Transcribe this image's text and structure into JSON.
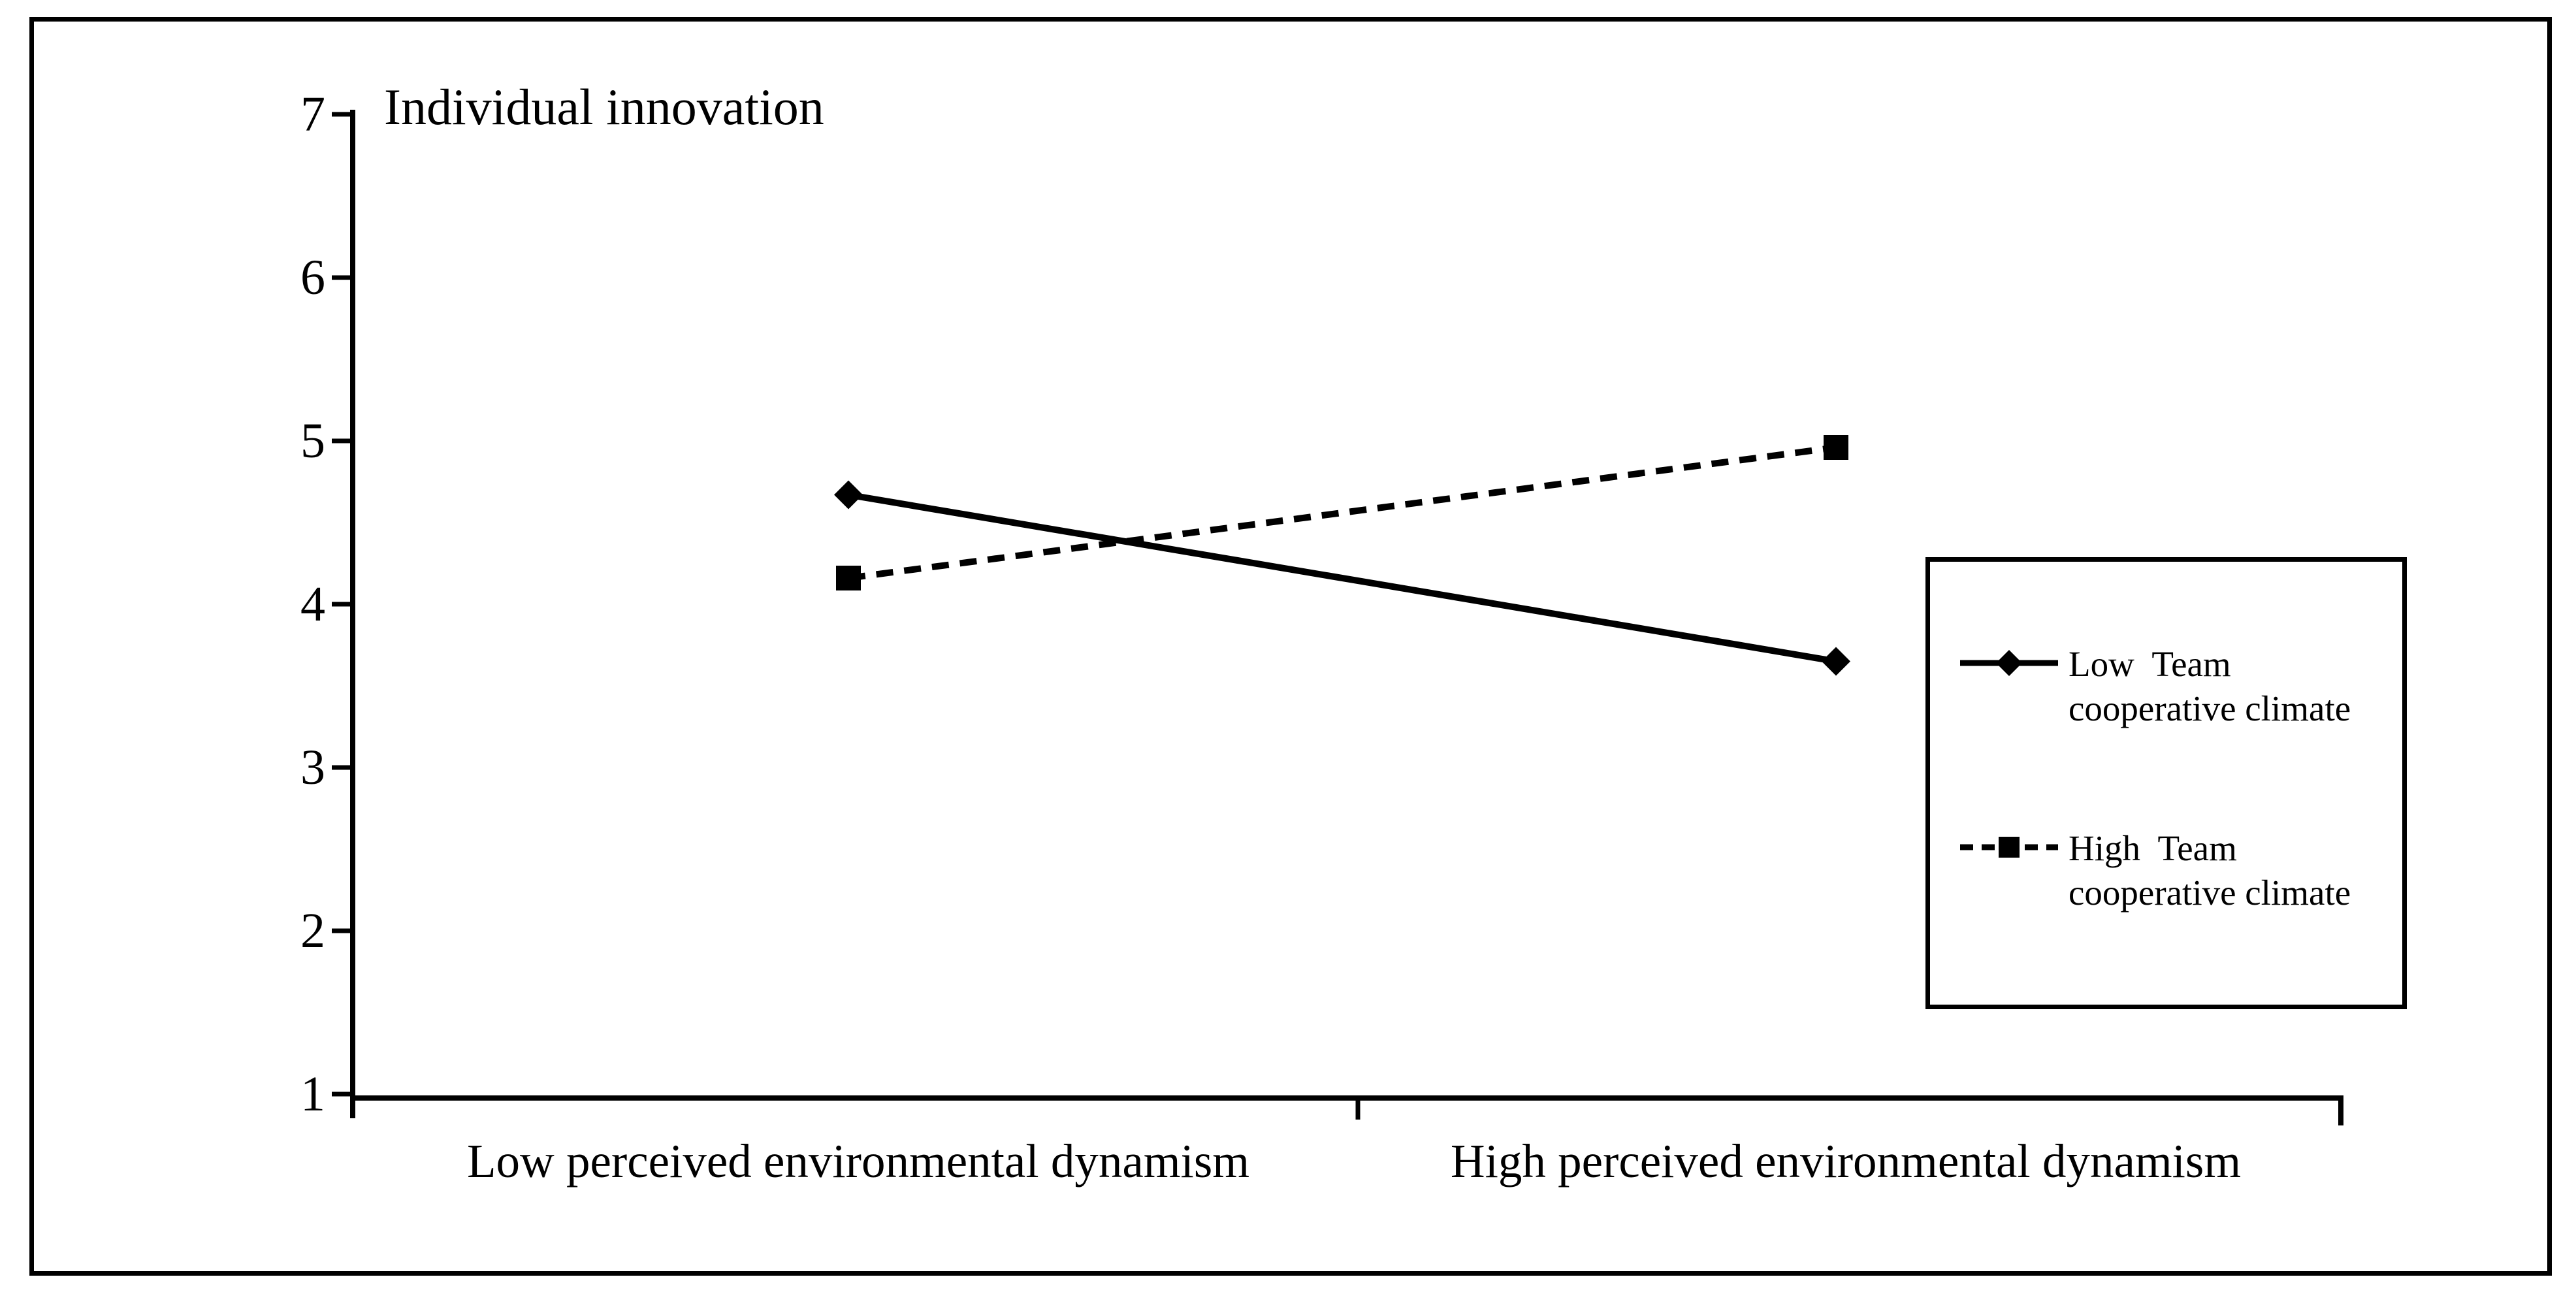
{
  "chart_data": {
    "type": "line",
    "title": "Individual innovation",
    "categories": [
      "Low perceived environmental dynamism",
      "High perceived environmental dynamism"
    ],
    "series": [
      {
        "name": "Low  Team cooperative climate",
        "marker": "diamond",
        "line_style": "solid",
        "values": [
          4.67,
          3.65
        ]
      },
      {
        "name": "High  Team cooperative climate",
        "marker": "square",
        "line_style": "dashed",
        "values": [
          4.16,
          4.96
        ]
      }
    ],
    "yticks": [
      7,
      6,
      5,
      4,
      3,
      2,
      1
    ],
    "ylim": [
      1,
      7
    ],
    "xlabel": "",
    "ylabel": "Individual innovation",
    "grid": false,
    "legend_position": "right",
    "colors": {
      "foreground": "#000000",
      "background": "#ffffff"
    }
  }
}
